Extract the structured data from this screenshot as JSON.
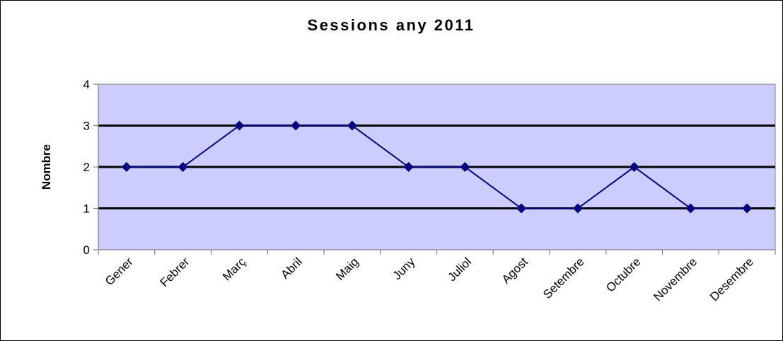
{
  "chart_data": {
    "type": "line",
    "title": "Sessions any 2011",
    "xlabel": "",
    "ylabel": "Nombre",
    "categories": [
      "Gener",
      "Febrer",
      "Març",
      "Abril",
      "Maig",
      "Juny",
      "Juliol",
      "Agost",
      "Setembre",
      "Octubre",
      "Novembre",
      "Desembre"
    ],
    "series": [
      {
        "values": [
          2,
          2,
          3,
          3,
          3,
          2,
          2,
          1,
          1,
          2,
          1,
          1
        ]
      }
    ],
    "ylim": [
      0,
      4
    ],
    "yticks": [
      0,
      1,
      2,
      3,
      4
    ],
    "grid": "horizontal major lines",
    "legend": "none",
    "colors": {
      "plot_background": "#ccccff",
      "series_line": "#000080",
      "gridline": "#000000",
      "axis": "#808080"
    }
  }
}
